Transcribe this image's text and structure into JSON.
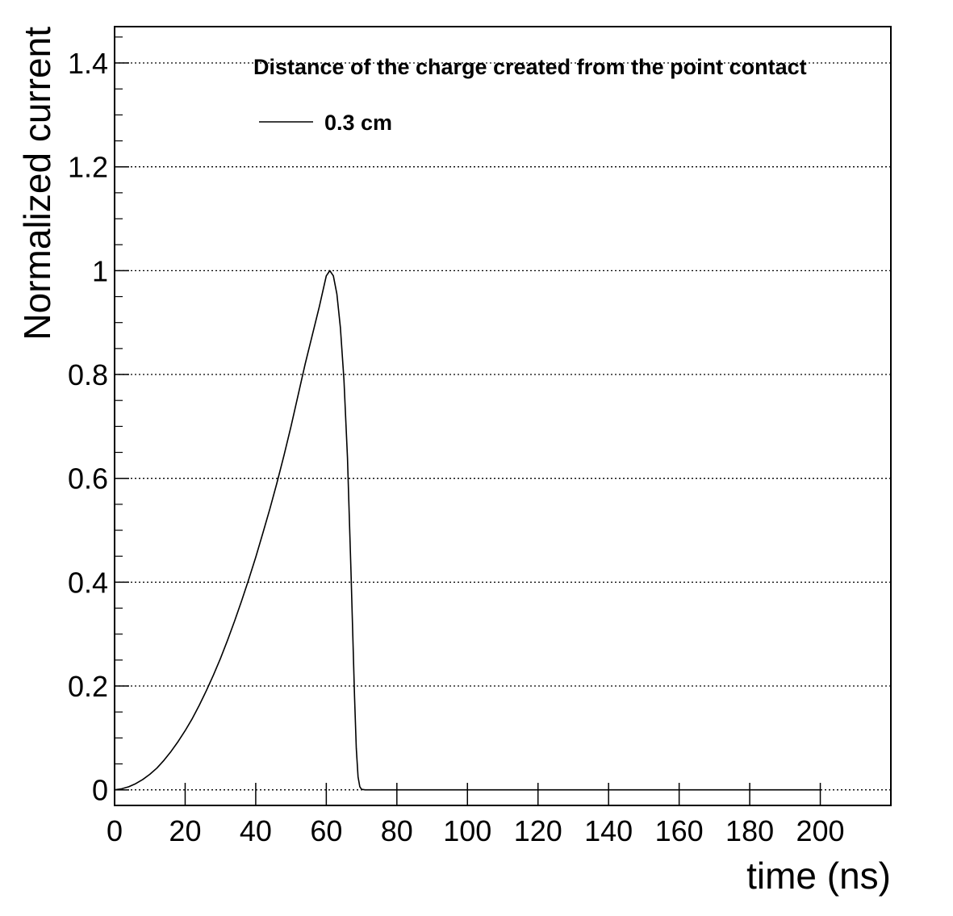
{
  "chart_data": {
    "type": "line",
    "title": "",
    "xlabel": "time (ns)",
    "ylabel": "Normalized current",
    "xlim": [
      0,
      220
    ],
    "ylim": [
      -0.03,
      1.47
    ],
    "x_ticks": [
      0,
      20,
      40,
      60,
      80,
      100,
      120,
      140,
      160,
      180,
      200
    ],
    "x_tick_labels": [
      "0",
      "20",
      "40",
      "60",
      "80",
      "100",
      "120",
      "140",
      "160",
      "180",
      "200"
    ],
    "y_ticks": [
      0,
      0.2,
      0.4,
      0.6,
      0.8,
      1,
      1.2,
      1.4
    ],
    "y_tick_labels": [
      "0",
      "0.2",
      "0.4",
      "0.6",
      "0.8",
      "1",
      "1.2",
      "1.4"
    ],
    "grid": "horizontal dotted",
    "legend": {
      "title": "Distance of the charge created from the point contact",
      "placement": "top-right",
      "entries": [
        "0.3 cm"
      ]
    },
    "series": [
      {
        "name": "0.3 cm",
        "color": "#000000",
        "x": [
          0,
          2,
          4,
          6,
          8,
          10,
          12,
          14,
          16,
          18,
          20,
          22,
          24,
          26,
          28,
          30,
          32,
          34,
          36,
          38,
          40,
          42,
          44,
          46,
          48,
          50,
          52,
          54,
          56,
          58,
          59,
          60,
          61,
          62,
          63,
          64,
          65,
          66,
          67,
          67.5,
          68,
          68.5,
          69,
          69.5,
          70,
          71,
          72,
          80,
          100,
          120,
          140,
          160,
          180,
          200
        ],
        "y": [
          0,
          0.002,
          0.006,
          0.012,
          0.02,
          0.03,
          0.042,
          0.057,
          0.074,
          0.093,
          0.114,
          0.137,
          0.163,
          0.191,
          0.221,
          0.253,
          0.288,
          0.325,
          0.364,
          0.405,
          0.448,
          0.494,
          0.541,
          0.591,
          0.644,
          0.7,
          0.76,
          0.82,
          0.875,
          0.93,
          0.96,
          0.99,
          1.0,
          0.99,
          0.955,
          0.89,
          0.79,
          0.64,
          0.42,
          0.3,
          0.18,
          0.08,
          0.025,
          0.006,
          0.001,
          0,
          0,
          0,
          0,
          0,
          0,
          0,
          0,
          0
        ]
      }
    ]
  }
}
